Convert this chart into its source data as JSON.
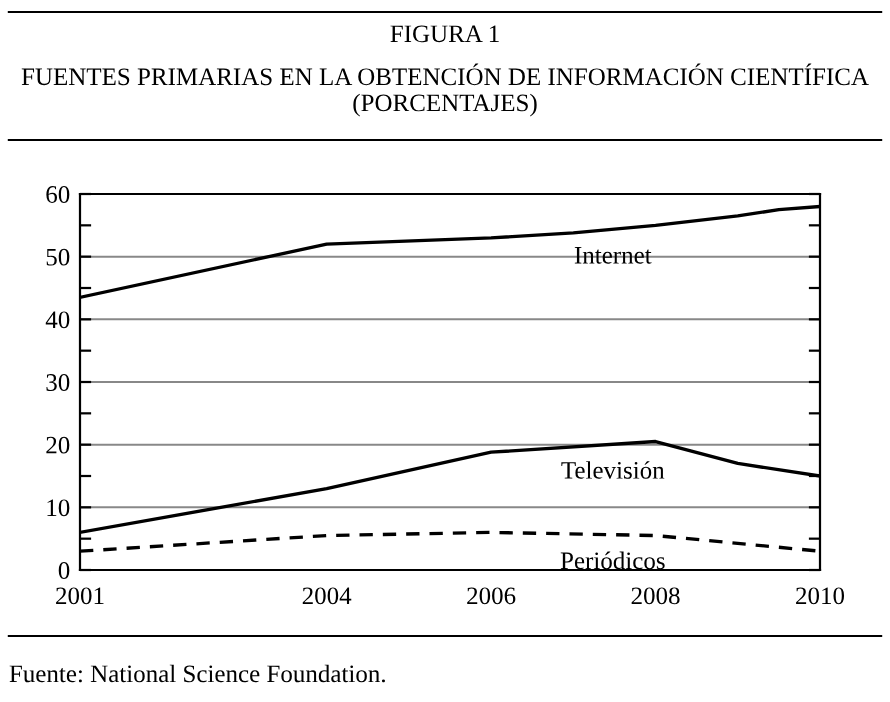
{
  "chart_data": {
    "type": "line",
    "title": "FIGURA 1",
    "subtitle": "FUENTES PRIMARIAS EN LA OBTENCIÓN DE INFORMACIÓN CIENTÍFICA (PORCENTAJES)",
    "annotations": [
      "Fuente: National Science Foundation."
    ],
    "series": [
      {
        "name": "Internet",
        "color": "#000000",
        "line_style": "solid",
        "x": [
          2001,
          2004,
          2006,
          2007,
          2008,
          2009,
          2009.5,
          2010
        ],
        "values": [
          43.5,
          52,
          53,
          53.8,
          55,
          56.5,
          57.5,
          58
        ]
      },
      {
        "name": "Televisión",
        "color": "#000000",
        "line_style": "solid",
        "x": [
          2001,
          2004,
          2006,
          2008,
          2009,
          2010
        ],
        "values": [
          6,
          13,
          18.8,
          20.5,
          17,
          15
        ]
      },
      {
        "name": "Periódicos",
        "color": "#000000",
        "line_style": "dashed",
        "x": [
          2001,
          2004,
          2006,
          2008,
          2010
        ],
        "values": [
          3,
          5.5,
          6,
          5.5,
          3
        ]
      }
    ],
    "xlim": [
      2001,
      2010
    ],
    "xticks": [
      2001,
      2004,
      2006,
      2008,
      2010
    ],
    "ylim": [
      0,
      60
    ],
    "yticks": [
      0,
      {
        "value": 5,
        "label": null
      },
      10,
      {
        "value": 15,
        "label": null
      },
      20,
      {
        "value": 25,
        "label": null
      },
      30,
      {
        "value": 35,
        "label": null
      },
      40,
      {
        "value": 45,
        "label": null
      },
      50,
      {
        "value": 55,
        "label": null
      },
      60
    ],
    "grid": "y",
    "legend": false,
    "marker": "none"
  }
}
